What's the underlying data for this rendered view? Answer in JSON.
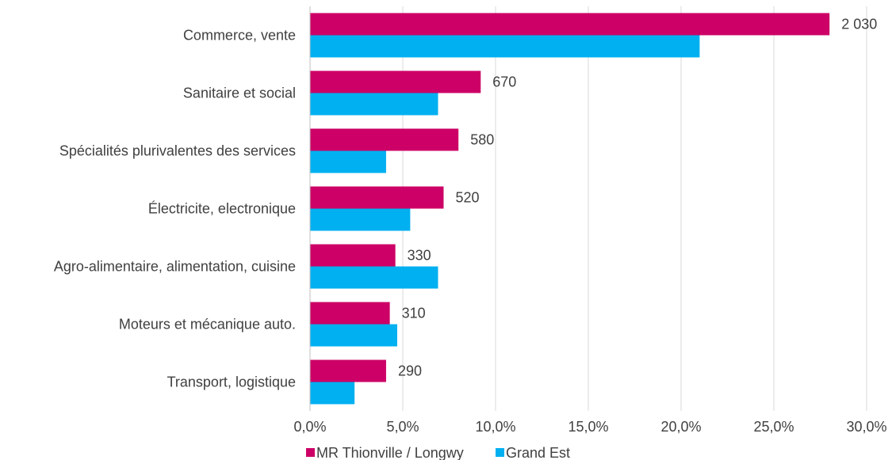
{
  "chart_data": {
    "type": "bar",
    "orientation": "horizontal",
    "categories": [
      "Commerce, vente",
      "Sanitaire et social",
      "Spécialités plurivalentes des services",
      "Électricite, electronique",
      "Agro-alimentaire, alimentation, cuisine",
      "Moteurs et mécanique auto.",
      "Transport, logistique"
    ],
    "series": [
      {
        "name": "MR Thionville / Longwy",
        "color": "#cc0066",
        "values": [
          28.0,
          9.2,
          8.0,
          7.2,
          4.6,
          4.3,
          4.1
        ],
        "labels": [
          "2 030",
          "670",
          "580",
          "520",
          "330",
          "310",
          "290"
        ]
      },
      {
        "name": "Grand Est",
        "color": "#00b0f0",
        "values": [
          21.0,
          6.9,
          4.1,
          5.4,
          6.9,
          4.7,
          2.4
        ]
      }
    ],
    "xlim": [
      0,
      30
    ],
    "xticks": [
      "0,0%",
      "5,0%",
      "10,0%",
      "15,0%",
      "20,0%",
      "25,0%",
      "30,0%"
    ],
    "xtick_values": [
      0,
      5,
      10,
      15,
      20,
      25,
      30
    ],
    "grid": "vertical",
    "legend": "bottom"
  }
}
